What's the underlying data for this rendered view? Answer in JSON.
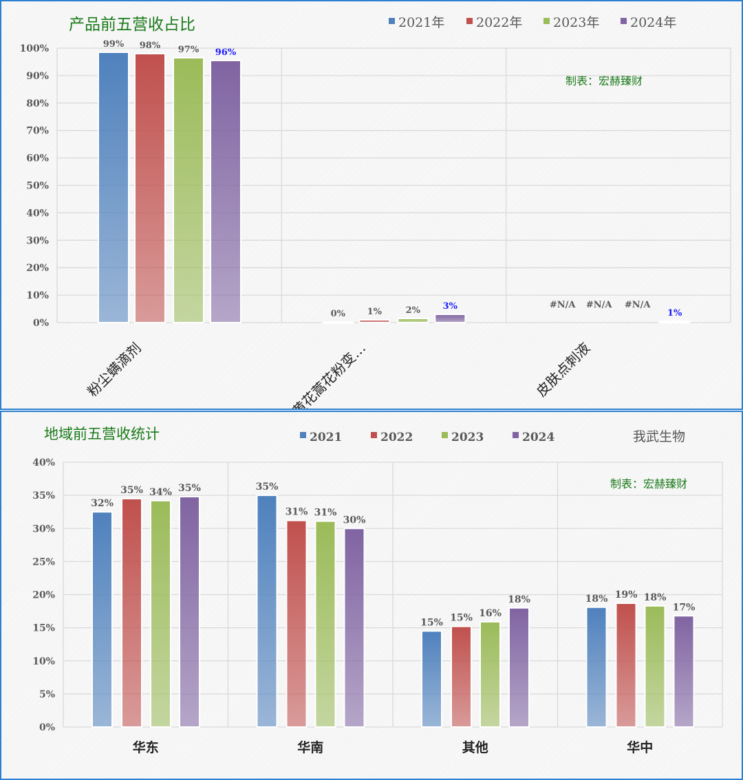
{
  "colors": {
    "2021": "#4f81bd",
    "2022": "#c0504d",
    "2023": "#9bbb59",
    "2024": "#8064a2",
    "title": "#1a7a1a",
    "label": "#555555",
    "highlight": "#1a1aff"
  },
  "chart_data": [
    {
      "type": "bar",
      "title": "产品前五营收占比",
      "credit": "制表：宏赫臻财",
      "legend": [
        "2021年",
        "2022年",
        "2023年",
        "2024年"
      ],
      "legend_position": "top-right",
      "categories": [
        "粉尘螨滴剂",
        "黄花蒿花粉变…",
        "皮肤点刺液"
      ],
      "yticks": [
        "0%",
        "10%",
        "20%",
        "30%",
        "40%",
        "50%",
        "60%",
        "70%",
        "80%",
        "90%",
        "100%"
      ],
      "ylim": [
        0,
        100
      ],
      "series": [
        {
          "name": "2021年",
          "values": [
            98.5,
            0.2,
            null
          ],
          "labels": [
            "99%",
            "0%",
            "#N/A"
          ]
        },
        {
          "name": "2022年",
          "values": [
            98,
            1,
            null
          ],
          "labels": [
            "98%",
            "1%",
            "#N/A"
          ]
        },
        {
          "name": "2023年",
          "values": [
            96.5,
            1.5,
            null
          ],
          "labels": [
            "97%",
            "2%",
            "#N/A"
          ]
        },
        {
          "name": "2024年",
          "values": [
            95.5,
            3,
            0.5
          ],
          "labels": [
            "96%",
            "3%",
            "1%"
          ]
        }
      ]
    },
    {
      "type": "bar",
      "title": "地域前五营收统计",
      "company": "我武生物",
      "credit": "制表：宏赫臻财",
      "legend": [
        "2021",
        "2022",
        "2023",
        "2024"
      ],
      "legend_position": "top",
      "categories": [
        "华东",
        "华南",
        "其他",
        "华中"
      ],
      "yticks": [
        "0%",
        "5%",
        "10%",
        "15%",
        "20%",
        "25%",
        "30%",
        "35%",
        "40%"
      ],
      "ylim": [
        0,
        40
      ],
      "series": [
        {
          "name": "2021",
          "values": [
            32.5,
            35,
            14.5,
            18.1
          ],
          "labels": [
            "32%",
            "35%",
            "15%",
            "18%"
          ]
        },
        {
          "name": "2022",
          "values": [
            34.5,
            31.2,
            15.2,
            18.7
          ],
          "labels": [
            "35%",
            "31%",
            "15%",
            "19%"
          ]
        },
        {
          "name": "2023",
          "values": [
            34.2,
            31.1,
            15.9,
            18.3
          ],
          "labels": [
            "34%",
            "31%",
            "16%",
            "18%"
          ]
        },
        {
          "name": "2024",
          "values": [
            34.8,
            30,
            18,
            16.8
          ],
          "labels": [
            "35%",
            "30%",
            "18%",
            "17%"
          ]
        }
      ]
    }
  ]
}
